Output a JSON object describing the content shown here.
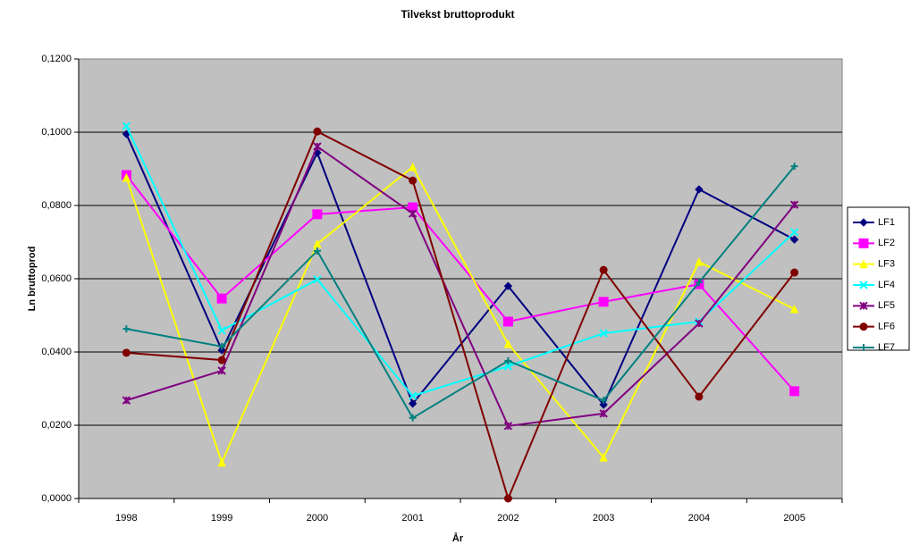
{
  "chart_data": {
    "type": "line",
    "title": "Tilvekst bruttoprodukt",
    "xlabel": "År",
    "ylabel": "Ln bruttoprod",
    "categories": [
      "1998",
      "1999",
      "2000",
      "2001",
      "2002",
      "2003",
      "2004",
      "2005"
    ],
    "ylim": [
      0,
      0.12
    ],
    "yticks": [
      {
        "value": 0,
        "label": "0,0000"
      },
      {
        "value": 0.02,
        "label": "0,0200"
      },
      {
        "value": 0.04,
        "label": "0,0400"
      },
      {
        "value": 0.06,
        "label": "0,0600"
      },
      {
        "value": 0.08,
        "label": "0,0800"
      },
      {
        "value": 0.1,
        "label": "0,1000"
      },
      {
        "value": 0.12,
        "label": "0,1200"
      }
    ],
    "grid": true,
    "legend": "right",
    "series": [
      {
        "name": "LF1",
        "color": "#000080",
        "marker": "diamond",
        "values": [
          0.0995,
          0.0405,
          0.0944,
          0.0259,
          0.058,
          0.0256,
          0.0844,
          0.0707
        ]
      },
      {
        "name": "LF2",
        "color": "#ff00ff",
        "marker": "square",
        "values": [
          0.0883,
          0.0546,
          0.0776,
          0.0795,
          0.0483,
          0.0537,
          0.0585,
          0.0293
        ]
      },
      {
        "name": "LF3",
        "color": "#ffff00",
        "marker": "triangle",
        "values": [
          0.0876,
          0.0098,
          0.0695,
          0.0905,
          0.0422,
          0.0112,
          0.0646,
          0.0517
        ]
      },
      {
        "name": "LF4",
        "color": "#00ffff",
        "marker": "x",
        "values": [
          0.1017,
          0.0459,
          0.0598,
          0.028,
          0.0361,
          0.0451,
          0.0483,
          0.0727
        ]
      },
      {
        "name": "LF5",
        "color": "#800080",
        "marker": "star",
        "values": [
          0.0268,
          0.0349,
          0.0961,
          0.0778,
          0.0198,
          0.0232,
          0.0478,
          0.0802
        ]
      },
      {
        "name": "LF6",
        "color": "#800000",
        "marker": "circle",
        "values": [
          0.0398,
          0.0378,
          0.1002,
          0.0868,
          0.0,
          0.0624,
          0.0278,
          0.0617
        ]
      },
      {
        "name": "LF7",
        "color": "#008080",
        "marker": "plus",
        "values": [
          0.0463,
          0.0415,
          0.0676,
          0.022,
          0.0376,
          0.0268,
          0.059,
          0.0907
        ]
      }
    ]
  }
}
